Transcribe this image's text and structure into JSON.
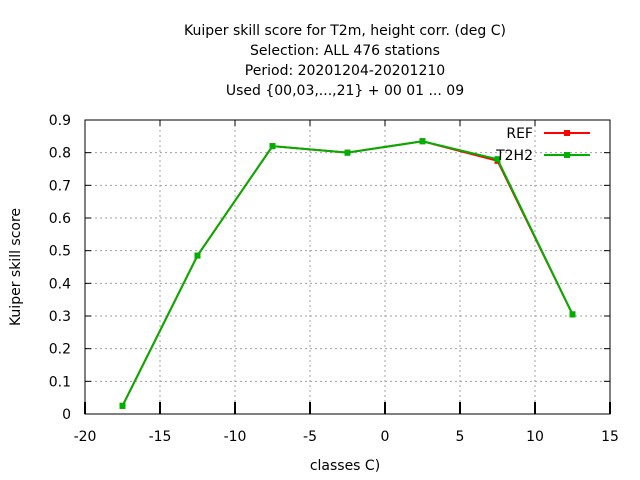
{
  "chart_data": {
    "type": "line",
    "title_lines": [
      "Kuiper skill score  for T2m, height corr. (deg C)",
      "Selection: ALL    476 stations",
      "Period: 20201204-20201210",
      "Used {00,03,...,21} + 00 01 ... 09"
    ],
    "xlabel": "classes C)",
    "ylabel": "Kuiper skill score",
    "xlim": [
      -20,
      15
    ],
    "ylim": [
      0,
      0.9
    ],
    "xticks": [
      -20,
      -15,
      -10,
      -5,
      0,
      5,
      10,
      15
    ],
    "yticks": [
      0,
      0.1,
      0.2,
      0.3,
      0.4,
      0.5,
      0.6,
      0.7,
      0.8,
      0.9
    ],
    "xtick_labels": [
      "-20",
      "-15",
      "-10",
      "-5",
      "0",
      "5",
      "10",
      "15"
    ],
    "ytick_labels": [
      "0",
      "0.1",
      "0.2",
      "0.3",
      "0.4",
      "0.5",
      "0.6",
      "0.7",
      "0.8",
      "0.9"
    ],
    "grid": true,
    "legend_position": "top-right",
    "series": [
      {
        "name": "REF",
        "color": "#ff0000",
        "x": [
          -17.5,
          -12.5,
          -7.5,
          -2.5,
          2.5,
          7.5,
          12.5
        ],
        "y": [
          0.025,
          0.485,
          0.82,
          0.8,
          0.835,
          0.775,
          0.305
        ]
      },
      {
        "name": "T2H2",
        "color": "#00b000",
        "x": [
          -17.5,
          -12.5,
          -7.5,
          -2.5,
          2.5,
          7.5,
          12.5
        ],
        "y": [
          0.025,
          0.485,
          0.82,
          0.8,
          0.835,
          0.78,
          0.305
        ]
      }
    ]
  }
}
